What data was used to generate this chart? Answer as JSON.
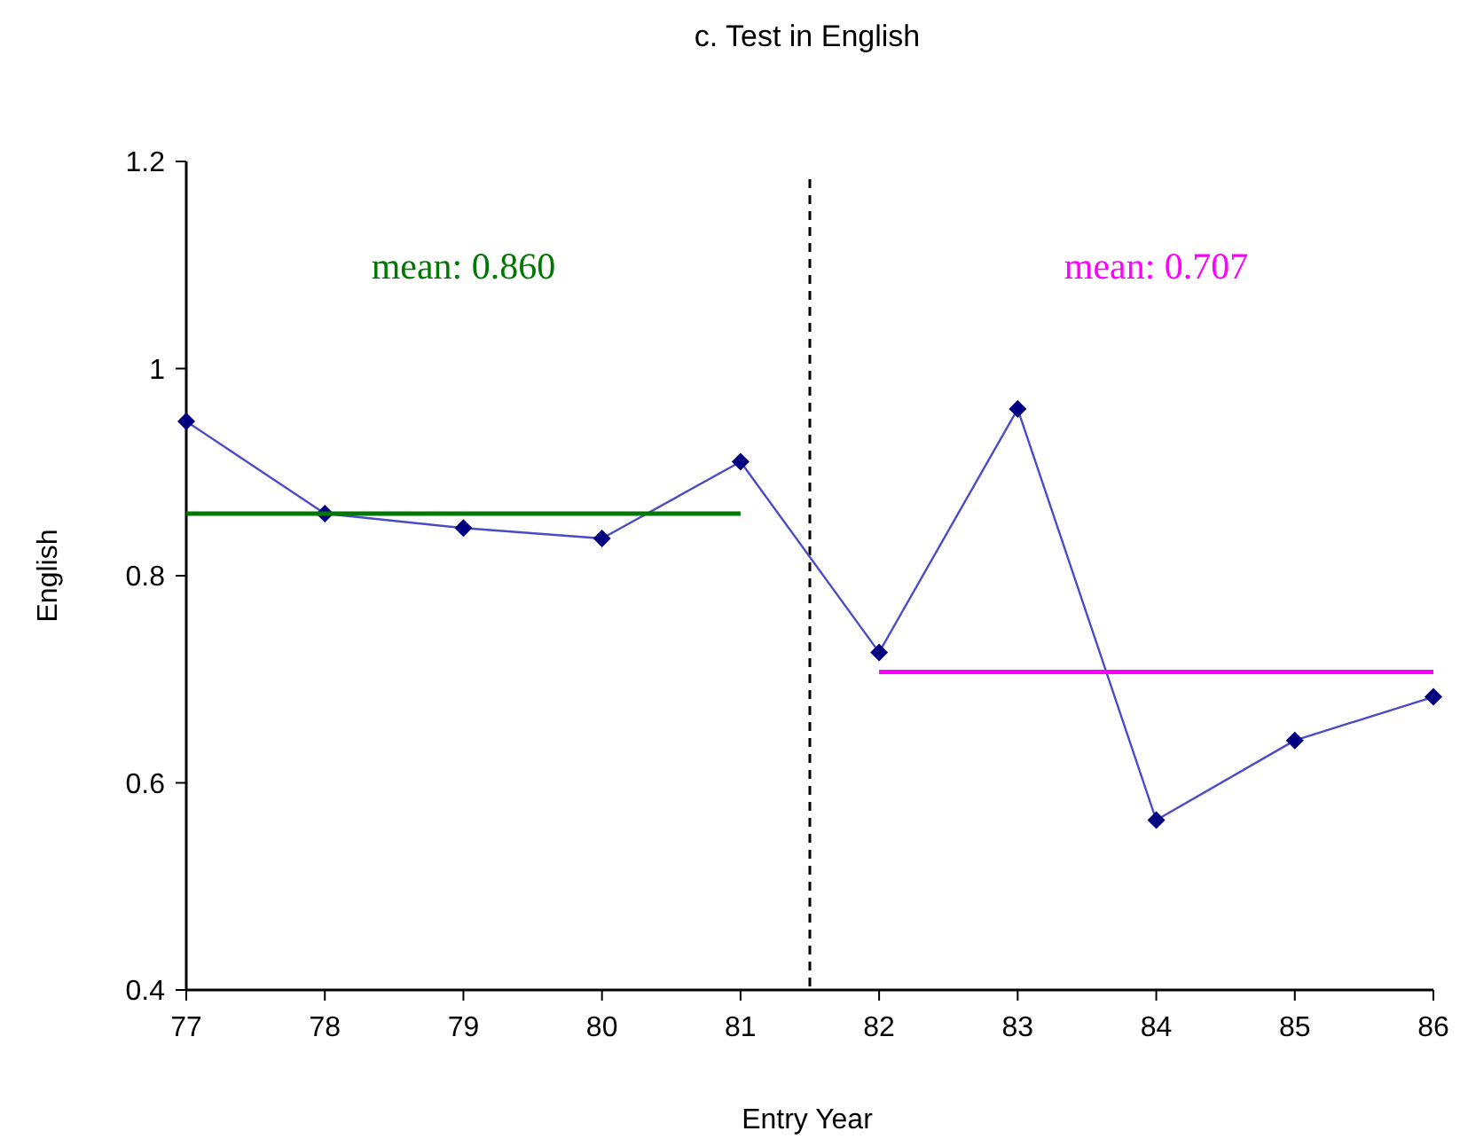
{
  "chart_data": {
    "type": "line",
    "title": "c. Test in English",
    "xlabel": "Entry Year",
    "ylabel": "English",
    "x": [
      77,
      78,
      79,
      80,
      81,
      82,
      83,
      84,
      85,
      86
    ],
    "series": [
      {
        "color": "#4b4bc8",
        "marker": "diamond",
        "values": [
          0.949,
          0.86,
          0.846,
          0.836,
          0.91,
          0.726,
          0.961,
          0.564,
          0.641,
          0.683
        ]
      },
      {
        "name": "mean: 0.860",
        "color": "#007700",
        "marker": "none",
        "x": [
          77,
          81
        ],
        "values": [
          0.86,
          0.86
        ]
      },
      {
        "name": "mean: 0.707",
        "color": "#ff00ff",
        "marker": "none",
        "x": [
          82,
          86
        ],
        "values": [
          0.707,
          0.707
        ]
      }
    ],
    "xlim": [
      77,
      86
    ],
    "xticks": [
      77,
      78,
      79,
      80,
      81,
      82,
      83,
      84,
      85,
      86
    ],
    "ylim": [
      0.4,
      1.2
    ],
    "yticks": [
      0.4,
      0.6,
      0.8,
      {
        "value": 1,
        "label": "1"
      },
      1.2
    ],
    "ref_lines": [
      {
        "axis": "x",
        "value": 81.5,
        "color": "#000000",
        "line_style": "dashed"
      }
    ],
    "grid": false
  }
}
